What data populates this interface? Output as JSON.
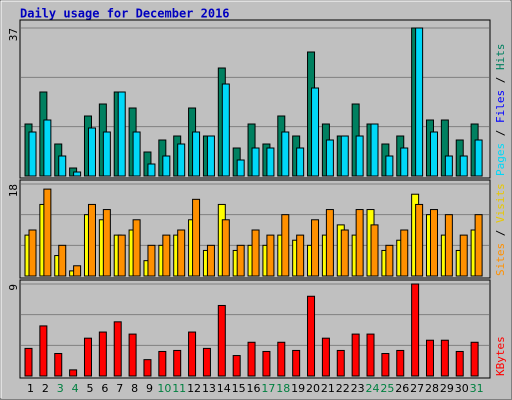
{
  "chart_data": [
    {
      "type": "bar",
      "title": "Daily usage for December 2016",
      "ylim": [
        0,
        37
      ],
      "yticks": [
        37
      ],
      "series": [
        {
          "name": "Hits",
          "color": "#008060",
          "values": [
            13,
            21,
            8,
            2,
            15,
            18,
            21,
            17,
            6,
            9,
            10,
            17,
            10,
            27,
            7,
            13,
            8,
            15,
            10,
            31,
            13,
            10,
            18,
            13,
            8,
            10,
            37,
            14,
            14,
            9,
            13
          ]
        },
        {
          "name": "Files",
          "color": "#0000ff",
          "values": [
            null,
            null,
            null,
            null,
            null,
            null,
            null,
            null,
            null,
            null,
            null,
            null,
            null,
            null,
            null,
            null,
            null,
            null,
            null,
            null,
            null,
            null,
            null,
            null,
            null,
            null,
            null,
            null,
            null,
            null,
            null
          ]
        },
        {
          "name": "Pages",
          "color": "#00d8f8",
          "values": [
            11,
            14,
            5,
            1,
            12,
            11,
            21,
            11,
            3,
            5,
            8,
            11,
            10,
            23,
            4,
            7,
            7,
            11,
            7,
            22,
            9,
            10,
            10,
            13,
            5,
            7,
            37,
            11,
            5,
            5,
            9
          ]
        }
      ],
      "legend_separator": "/"
    },
    {
      "type": "bar",
      "ylim": [
        0,
        18
      ],
      "yticks": [
        18
      ],
      "series": [
        {
          "name": "Visits",
          "color": "#ffff00",
          "values": [
            8,
            14,
            4,
            1,
            12,
            11,
            8,
            9,
            3,
            6,
            8,
            11,
            5,
            14,
            5,
            6,
            6,
            8,
            7,
            6,
            8,
            10,
            8,
            13,
            5,
            7,
            16,
            12,
            8,
            5,
            9
          ]
        },
        {
          "name": "Sites",
          "color": "#ff9000",
          "values": [
            9,
            17,
            6,
            2,
            14,
            13,
            8,
            11,
            6,
            8,
            9,
            15,
            6,
            11,
            6,
            9,
            8,
            12,
            8,
            11,
            13,
            9,
            13,
            10,
            6,
            9,
            14,
            13,
            12,
            8,
            12
          ]
        }
      ],
      "legend_separator": "/"
    },
    {
      "type": "bar",
      "ylim": [
        0,
        9
      ],
      "yticks": [
        9
      ],
      "series": [
        {
          "name": "KBytes",
          "color": "#ff0000",
          "values": [
            2.7,
            4.9,
            2.2,
            0.6,
            3.7,
            4.3,
            5.3,
            4.1,
            1.6,
            2.4,
            2.5,
            4.3,
            2.7,
            6.9,
            2.0,
            3.3,
            2.4,
            3.3,
            2.5,
            7.8,
            3.7,
            2.5,
            4.1,
            4.1,
            2.2,
            2.5,
            9,
            3.5,
            3.5,
            2.4,
            3.3
          ]
        }
      ],
      "categories": [
        "1",
        "2",
        "3",
        "4",
        "5",
        "6",
        "7",
        "8",
        "9",
        "10",
        "11",
        "12",
        "13",
        "14",
        "15",
        "16",
        "17",
        "18",
        "19",
        "20",
        "21",
        "22",
        "23",
        "24",
        "25",
        "26",
        "27",
        "28",
        "29",
        "30",
        "31"
      ],
      "category_colors": [
        "#000000",
        "#000000",
        "#008040",
        "#008040",
        "#000000",
        "#000000",
        "#000000",
        "#000000",
        "#000000",
        "#008040",
        "#008040",
        "#000000",
        "#000000",
        "#000000",
        "#000000",
        "#000000",
        "#008040",
        "#008040",
        "#000000",
        "#000000",
        "#000000",
        "#000000",
        "#000000",
        "#008040",
        "#008040",
        "#000000",
        "#000000",
        "#000000",
        "#000000",
        "#000000",
        "#008040"
      ]
    }
  ]
}
